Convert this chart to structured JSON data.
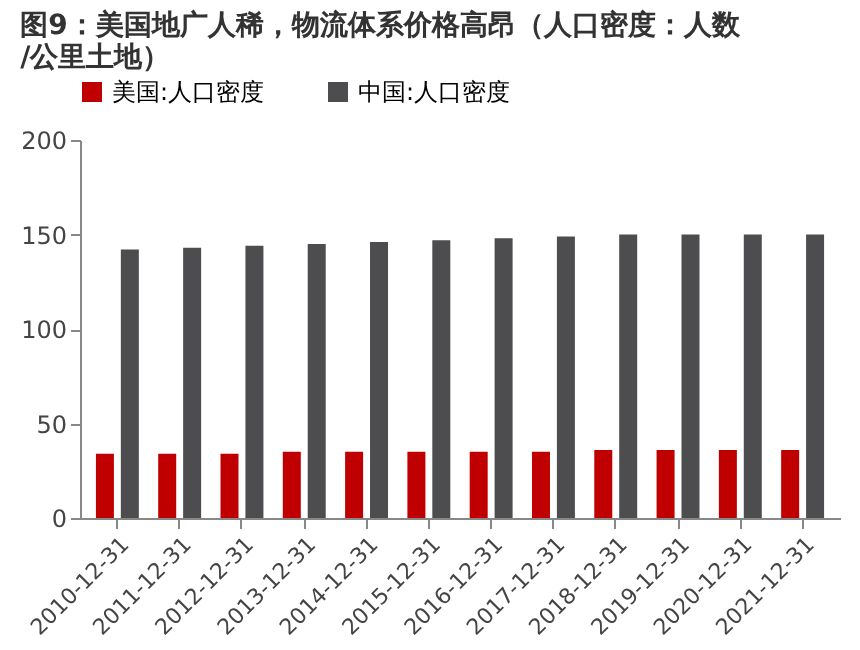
{
  "chart_data": {
    "type": "bar",
    "title": "图9：美国地广人稀，物流体系价格高昂（人口密度：人数/公里土地）",
    "categories": [
      "2010-12-31",
      "2011-12-31",
      "2012-12-31",
      "2013-12-31",
      "2014-12-31",
      "2015-12-31",
      "2016-12-31",
      "2017-12-31",
      "2018-12-31",
      "2019-12-31",
      "2020-12-31",
      "2021-12-31"
    ],
    "series": [
      {
        "name": "美国:人口密度",
        "color": "#c00000",
        "values": [
          34,
          34,
          34,
          35,
          35,
          35,
          35,
          35,
          36,
          36,
          36,
          36
        ]
      },
      {
        "name": "中国:人口密度",
        "color": "#4d4d4f",
        "values": [
          142,
          143,
          144,
          145,
          146,
          147,
          148,
          149,
          150,
          150,
          150,
          150
        ]
      }
    ],
    "ylim": [
      0,
      200
    ],
    "yticks": [
      0,
      50,
      100,
      150,
      200
    ],
    "grid": false,
    "legend": "top"
  }
}
